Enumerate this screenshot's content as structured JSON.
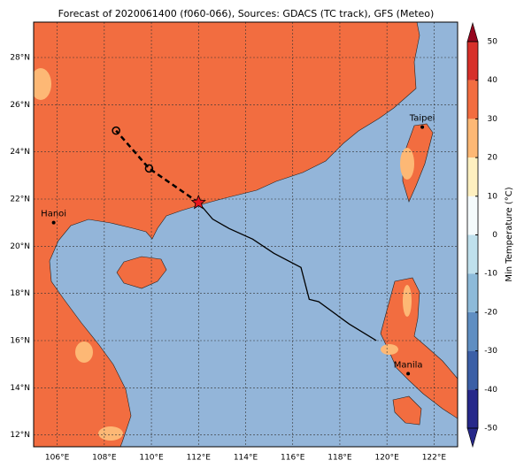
{
  "title": "Forecast of 2020061400 (f060-066), Sources: GDACS (TC track), GFS (Meteo)",
  "map": {
    "xlim": [
      105,
      123
    ],
    "ylim": [
      11.5,
      29.5
    ],
    "xticks": [
      {
        "value": 106,
        "label": "106°E"
      },
      {
        "value": 108,
        "label": "108°E"
      },
      {
        "value": 110,
        "label": "110°E"
      },
      {
        "value": 112,
        "label": "112°E"
      },
      {
        "value": 114,
        "label": "114°E"
      },
      {
        "value": 116,
        "label": "116°E"
      },
      {
        "value": 118,
        "label": "118°E"
      },
      {
        "value": 120,
        "label": "120°E"
      },
      {
        "value": 122,
        "label": "122°E"
      }
    ],
    "yticks": [
      {
        "value": 12,
        "label": "12°N"
      },
      {
        "value": 14,
        "label": "14°N"
      },
      {
        "value": 16,
        "label": "16°N"
      },
      {
        "value": 18,
        "label": "18°N"
      },
      {
        "value": 20,
        "label": "20°N"
      },
      {
        "value": 22,
        "label": "22°N"
      },
      {
        "value": 24,
        "label": "24°N"
      },
      {
        "value": 26,
        "label": "26°N"
      },
      {
        "value": 28,
        "label": "28°N"
      }
    ],
    "grid": true
  },
  "cities": [
    {
      "name": "Hanoi",
      "lon": 105.85,
      "lat": 21.0
    },
    {
      "name": "Taipei",
      "lon": 121.5,
      "lat": 25.05
    },
    {
      "name": "Manila",
      "lon": 120.9,
      "lat": 14.6
    }
  ],
  "track": {
    "past": {
      "lon": [
        119.55,
        118.4,
        117.1,
        116.7,
        116.35,
        115.2,
        114.3,
        113.3,
        112.6,
        112.0
      ],
      "lat": [
        16.0,
        16.7,
        17.65,
        17.75,
        19.1,
        19.7,
        20.3,
        20.75,
        21.15,
        21.85
      ],
      "color": "#000000"
    },
    "forecast": {
      "lon": [
        112.0,
        109.9,
        108.5
      ],
      "lat": [
        21.85,
        23.3,
        24.9
      ],
      "color": "#000000"
    },
    "current": {
      "lon": 112.0,
      "lat": 21.85,
      "color": "#e8141c"
    }
  },
  "colorbar": {
    "label": "Min Temperature (°C)",
    "lim": [
      -50,
      50
    ],
    "ticks": [
      -50,
      -40,
      -30,
      -20,
      -10,
      0,
      10,
      20,
      30,
      40,
      50
    ],
    "colors": [
      "#26288a",
      "#3b5fa6",
      "#5f8ec2",
      "#8dbad9",
      "#bfe0ec",
      "#f5fbfc",
      "#fef0c0",
      "#fdb875",
      "#f26d40",
      "#d7302a",
      "#96061f"
    ]
  }
}
